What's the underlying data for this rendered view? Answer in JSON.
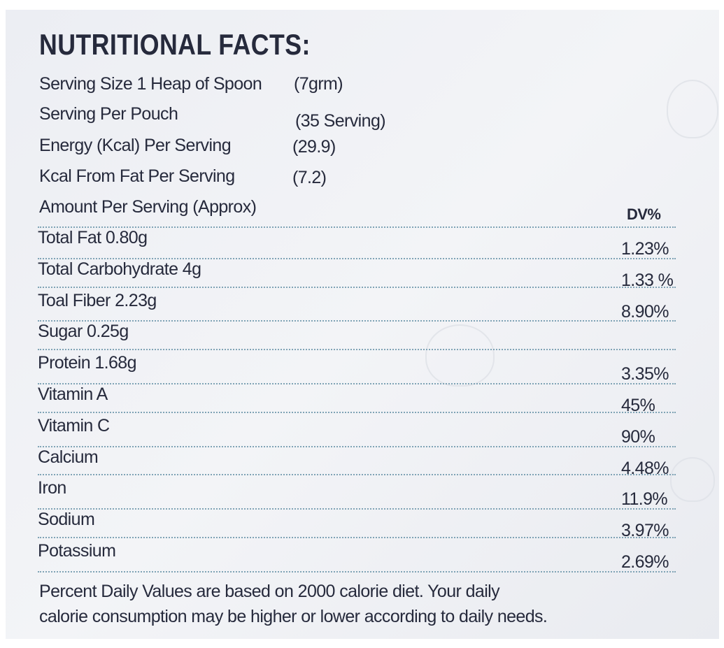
{
  "title": "NUTRITIONAL FACTS:",
  "serving": [
    {
      "label": "Serving Size 1 Heap of Spoon",
      "value": "(7grm)"
    },
    {
      "label": "Serving Per Pouch",
      "value": "(35 Serving)"
    },
    {
      "label": "Energy (Kcal) Per Serving",
      "value": "(29.9)"
    },
    {
      "label": "Kcal From Fat Per Serving",
      "value": "(7.2)"
    }
  ],
  "table": {
    "header": {
      "label": "Amount Per Serving (Approx)",
      "dv": "DV%"
    },
    "rows": [
      {
        "name": "Total Fat 0.80g",
        "dv": "1.23%"
      },
      {
        "name": "Total Carbohydrate 4g",
        "dv": "1.33 %"
      },
      {
        "name": "Toal Fiber 2.23g",
        "dv": "8.90%"
      },
      {
        "name": "Sugar 0.25g",
        "dv": null
      },
      {
        "name": "Protein 1.68g",
        "dv": "3.35%"
      },
      {
        "name": "Vitamin A",
        "dv": "45%"
      },
      {
        "name": "Vitamin C",
        "dv": "90%"
      },
      {
        "name": "Calcium",
        "dv": "4.48%"
      },
      {
        "name": "Iron",
        "dv": "11.9%"
      },
      {
        "name": "Sodium",
        "dv": "3.97%"
      },
      {
        "name": "Potassium",
        "dv": "2.69%"
      }
    ]
  },
  "footnote": [
    "Percent Daily Values are based on 2000 calorie diet. Your daily",
    "calorie consumption may be higher or lower according to daily needs."
  ]
}
